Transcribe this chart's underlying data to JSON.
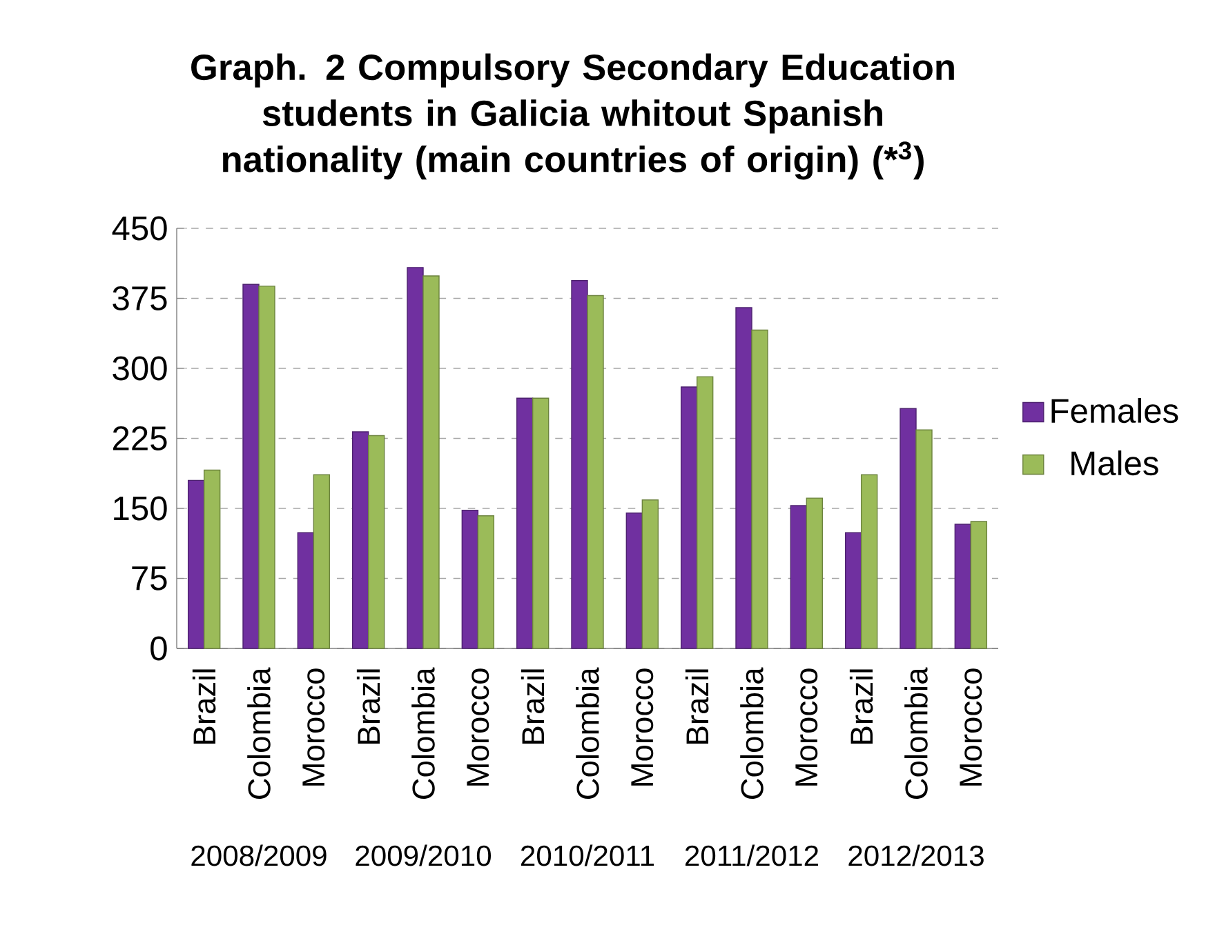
{
  "chart_data": {
    "type": "bar",
    "title": "Graph. 2 Compulsory Secondary Education students in Galicia whitout Spanish nationality (main countries of origin) (*$^{3}$)",
    "categories": [
      "Brazil",
      "Colombia",
      "Morocco",
      "Brazil",
      "Colombia",
      "Morocco",
      "Brazil",
      "Colombia",
      "Morocco",
      "Brazil",
      "Colombia",
      "Morocco",
      "Brazil",
      "Colombia",
      "Morocco"
    ],
    "annotations": [
      "2008/2009",
      "2009/2010",
      "2010/2011",
      "2011/2012",
      "2012/2013"
    ],
    "series": [
      {
        "name": "Females",
        "color": "#7030a0",
        "values": [
          180,
          390,
          124,
          232,
          408,
          148,
          268,
          394,
          145,
          280,
          365,
          153,
          124,
          257,
          133
        ]
      },
      {
        "name": "Males",
        "color": "#9bbb59",
        "values": [
          191,
          388,
          186,
          228,
          399,
          142,
          268,
          378,
          159,
          291,
          341,
          161,
          186,
          234,
          136
        ]
      }
    ],
    "ylim": [
      0,
      450
    ],
    "yticks": [
      0,
      75,
      150,
      225,
      300,
      375,
      450
    ],
    "grid": "y",
    "legend": "right"
  }
}
